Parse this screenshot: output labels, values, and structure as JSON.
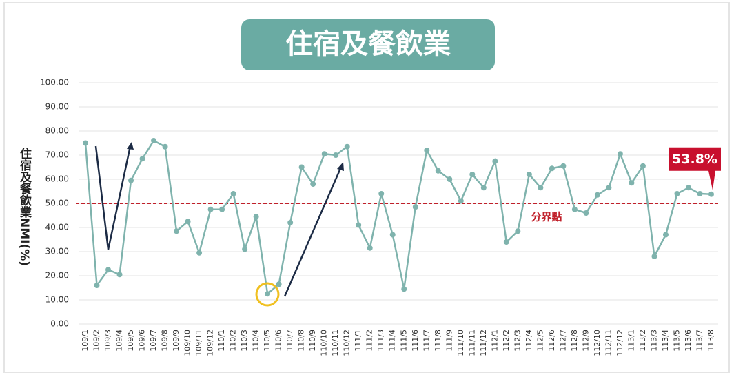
{
  "chart_data": {
    "type": "line",
    "title": "住宿及餐飲業",
    "y_label": "住宿及餐飲業NMI(%)",
    "categories": [
      "109/1",
      "109/2",
      "109/3",
      "109/4",
      "109/5",
      "109/6",
      "109/7",
      "109/8",
      "109/9",
      "109/10",
      "109/11",
      "109/12",
      "110/1",
      "110/2",
      "110/3",
      "110/4",
      "110/5",
      "110/6",
      "110/7",
      "110/8",
      "110/9",
      "110/10",
      "110/11",
      "110/12",
      "111/1",
      "111/2",
      "111/3",
      "111/4",
      "111/5",
      "111/6",
      "111/7",
      "111/8",
      "111/9",
      "111/10",
      "111/11",
      "111/12",
      "112/1",
      "112/2",
      "112/3",
      "112/4",
      "112/5",
      "112/6",
      "112/7",
      "112/8",
      "112/9",
      "112/10",
      "112/11",
      "112/12",
      "113/1",
      "113/2",
      "113/3",
      "113/4",
      "113/5",
      "113/6",
      "113/7",
      "113/8"
    ],
    "values": [
      75,
      16,
      22.5,
      20.5,
      59.5,
      68.5,
      76,
      73.5,
      38.5,
      42.5,
      29.5,
      47.5,
      47.5,
      54,
      31,
      44.5,
      12.5,
      16.5,
      42,
      65,
      58,
      70.5,
      70,
      73.5,
      41,
      31.5,
      54,
      37,
      14.5,
      48.5,
      72,
      63.5,
      60,
      51,
      62,
      56.5,
      67.5,
      34,
      38.5,
      62,
      56.5,
      64.5,
      65.5,
      47.5,
      46,
      53.5,
      56.5,
      70.5,
      58.5,
      65.5,
      28,
      37,
      54,
      56.5,
      54,
      53.8
    ],
    "value_labels": [
      null,
      null,
      null,
      null,
      null,
      null,
      null,
      null,
      null,
      null,
      null,
      null,
      null,
      null,
      null,
      null,
      null,
      null,
      null,
      null,
      null,
      null,
      null,
      null,
      null,
      null,
      null,
      null,
      null,
      null,
      null,
      null,
      null,
      null,
      null,
      null,
      null,
      null,
      null,
      null,
      null,
      null,
      null,
      null,
      null,
      null,
      null,
      null,
      null,
      null,
      null,
      null,
      null,
      null,
      null,
      "53.8%"
    ],
    "color": "#7fb3ad",
    "threshold": {
      "value": 50,
      "label": "分界點",
      "color": "#c0202a"
    },
    "ylim": [
      0,
      100
    ],
    "yticks": [
      {
        "value": 0,
        "label": "0.00"
      },
      {
        "value": 10,
        "label": "10.00"
      },
      {
        "value": 20,
        "label": "20.00"
      },
      {
        "value": 30,
        "label": "30.00"
      },
      {
        "value": 40,
        "label": "40.00"
      },
      {
        "value": 50,
        "label": "50.00"
      },
      {
        "value": 60,
        "label": "60.00"
      },
      {
        "value": 70,
        "label": "70.00"
      },
      {
        "value": 80,
        "label": "80.00"
      },
      {
        "value": 90,
        "label": "90.00"
      },
      {
        "value": 100,
        "label": "100.00"
      }
    ],
    "grid": true
  }
}
